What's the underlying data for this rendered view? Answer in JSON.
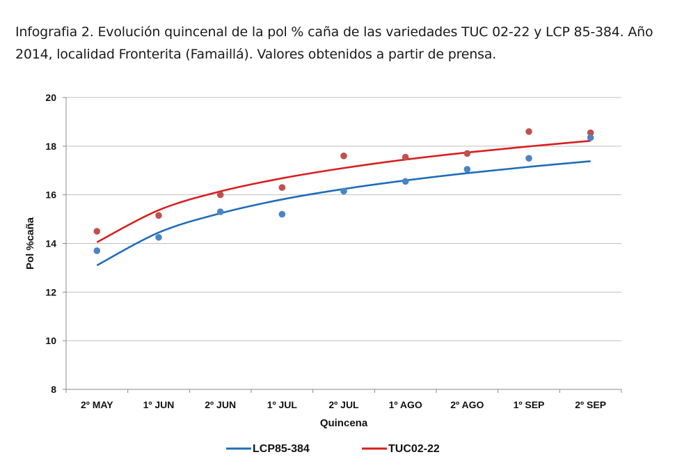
{
  "caption": {
    "line1": "Infografia 2. Evolución quincenal de la pol % caña de las variedades TUC 02-22 y LCP 85-384.  Año",
    "line2": "2014,  localidad Fronterita (Famaillá). Valores obtenidos a partir de prensa."
  },
  "colors": {
    "blue": "#1f6db8",
    "red": "#d81f1f",
    "blue_point": "#4a84c4",
    "red_point": "#c0504d",
    "grid": "#bfbfbf",
    "axis": "#888888"
  },
  "chart_data": {
    "type": "scatter",
    "title": "",
    "xlabel": "Quincena",
    "ylabel": "Pol %caña",
    "categories": [
      "2º MAY",
      "1º JUN",
      "2º JUN",
      "1º JUL",
      "2º JUL",
      "1º AGO",
      "2º AGO",
      "1º SEP",
      "2º SEP"
    ],
    "ylim": [
      8,
      20
    ],
    "yticks": [
      8,
      10,
      12,
      14,
      16,
      18,
      20
    ],
    "grid": true,
    "legend_position": "bottom",
    "series": [
      {
        "name": "LCP85-384",
        "color": "#1f6db8",
        "point_color": "#4a84c4",
        "values": [
          13.7,
          14.25,
          15.3,
          15.2,
          16.15,
          16.55,
          17.05,
          17.5,
          18.35
        ],
        "trend": [
          13.1,
          14.45,
          15.24,
          15.81,
          16.24,
          16.59,
          16.89,
          17.15,
          17.38
        ]
      },
      {
        "name": "TUC02-22",
        "color": "#d81f1f",
        "point_color": "#c0504d",
        "values": [
          14.5,
          15.15,
          16.0,
          16.3,
          17.6,
          17.55,
          17.7,
          18.6,
          18.55
        ],
        "trend": [
          14.05,
          15.37,
          16.14,
          16.68,
          17.1,
          17.45,
          17.74,
          17.99,
          18.22
        ]
      }
    ]
  }
}
